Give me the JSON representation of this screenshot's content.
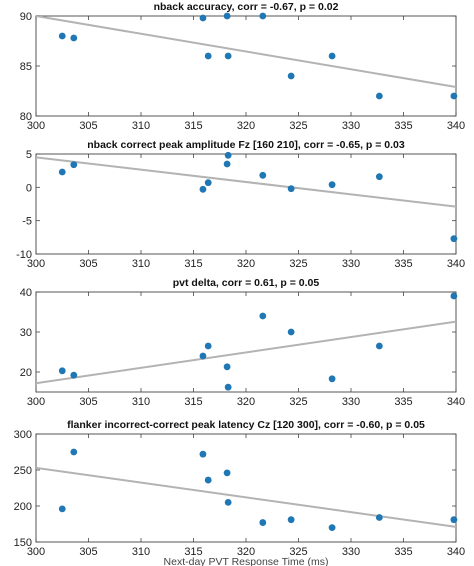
{
  "chart_data": [
    {
      "type": "scatter",
      "title": "nback  accuracy, corr = -0.67, p = 0.02",
      "xlim": [
        300,
        340
      ],
      "ylim": [
        80,
        90
      ],
      "xticks": [
        300,
        305,
        310,
        315,
        320,
        325,
        330,
        335,
        340
      ],
      "yticks": [
        80,
        85,
        90
      ],
      "points": [
        {
          "x": 302.5,
          "y": 88.0
        },
        {
          "x": 303.6,
          "y": 87.8
        },
        {
          "x": 315.9,
          "y": 89.8
        },
        {
          "x": 316.4,
          "y": 86.0
        },
        {
          "x": 318.2,
          "y": 90.0
        },
        {
          "x": 318.3,
          "y": 86.0
        },
        {
          "x": 321.6,
          "y": 90.0
        },
        {
          "x": 324.3,
          "y": 84.0
        },
        {
          "x": 328.2,
          "y": 86.0
        },
        {
          "x": 332.7,
          "y": 82.0
        },
        {
          "x": 339.8,
          "y": 82.0
        }
      ],
      "fit": {
        "x": [
          300,
          340
        ],
        "y": [
          90.0,
          82.9
        ]
      },
      "xlabel": "",
      "grid": false,
      "marker_color": "#1f77b4",
      "fit_color": "#b3b3b3"
    },
    {
      "type": "scatter",
      "title": "nback correct peak amplitude Fz [160 210], corr = -0.65, p = 0.03",
      "xlim": [
        300,
        340
      ],
      "ylim": [
        -10,
        5
      ],
      "xticks": [
        300,
        305,
        310,
        315,
        320,
        325,
        330,
        335,
        340
      ],
      "yticks": [
        -10,
        -5,
        0,
        5
      ],
      "points": [
        {
          "x": 302.5,
          "y": 2.3
        },
        {
          "x": 303.6,
          "y": 3.4
        },
        {
          "x": 315.9,
          "y": -0.3
        },
        {
          "x": 316.4,
          "y": 0.7
        },
        {
          "x": 318.2,
          "y": 3.5
        },
        {
          "x": 318.3,
          "y": 4.8
        },
        {
          "x": 321.6,
          "y": 1.8
        },
        {
          "x": 324.3,
          "y": -0.2
        },
        {
          "x": 328.2,
          "y": 0.4
        },
        {
          "x": 332.7,
          "y": 1.6
        },
        {
          "x": 339.8,
          "y": -7.7
        }
      ],
      "fit": {
        "x": [
          300,
          340
        ],
        "y": [
          4.5,
          -2.9
        ]
      },
      "xlabel": "",
      "grid": false,
      "marker_color": "#1f77b4",
      "fit_color": "#b3b3b3"
    },
    {
      "type": "scatter",
      "title": "pvt  delta, corr = 0.61, p = 0.05",
      "xlim": [
        300,
        340
      ],
      "ylim": [
        15,
        40
      ],
      "xticks": [
        300,
        305,
        310,
        315,
        320,
        325,
        330,
        335,
        340
      ],
      "yticks": [
        20,
        30,
        40
      ],
      "points": [
        {
          "x": 302.5,
          "y": 20.3
        },
        {
          "x": 303.6,
          "y": 19.2
        },
        {
          "x": 315.9,
          "y": 24.0
        },
        {
          "x": 316.4,
          "y": 26.5
        },
        {
          "x": 318.2,
          "y": 21.3
        },
        {
          "x": 318.3,
          "y": 16.2
        },
        {
          "x": 321.6,
          "y": 34.0
        },
        {
          "x": 324.3,
          "y": 30.0
        },
        {
          "x": 328.2,
          "y": 18.3
        },
        {
          "x": 332.7,
          "y": 26.5
        },
        {
          "x": 339.8,
          "y": 39.0
        }
      ],
      "fit": {
        "x": [
          300,
          340
        ],
        "y": [
          17.2,
          32.6
        ]
      },
      "xlabel": "",
      "grid": false,
      "marker_color": "#1f77b4",
      "fit_color": "#b3b3b3"
    },
    {
      "type": "scatter",
      "title": "flanker incorrect-correct peak latency Cz [120 300], corr = -0.60, p = 0.05",
      "xlim": [
        300,
        340
      ],
      "ylim": [
        150,
        300
      ],
      "xticks": [
        300,
        305,
        310,
        315,
        320,
        325,
        330,
        335,
        340
      ],
      "yticks": [
        150,
        200,
        250,
        300
      ],
      "points": [
        {
          "x": 302.5,
          "y": 196
        },
        {
          "x": 303.6,
          "y": 275
        },
        {
          "x": 315.9,
          "y": 272
        },
        {
          "x": 316.4,
          "y": 236
        },
        {
          "x": 318.2,
          "y": 246
        },
        {
          "x": 318.3,
          "y": 205
        },
        {
          "x": 321.6,
          "y": 177
        },
        {
          "x": 324.3,
          "y": 181
        },
        {
          "x": 328.2,
          "y": 170
        },
        {
          "x": 332.7,
          "y": 184
        },
        {
          "x": 339.8,
          "y": 181
        }
      ],
      "fit": {
        "x": [
          300,
          340
        ],
        "y": [
          253,
          171
        ]
      },
      "xlabel": "Next-day PVT Response Time (ms)",
      "grid": false,
      "marker_color": "#1f77b4",
      "fit_color": "#b3b3b3"
    }
  ]
}
